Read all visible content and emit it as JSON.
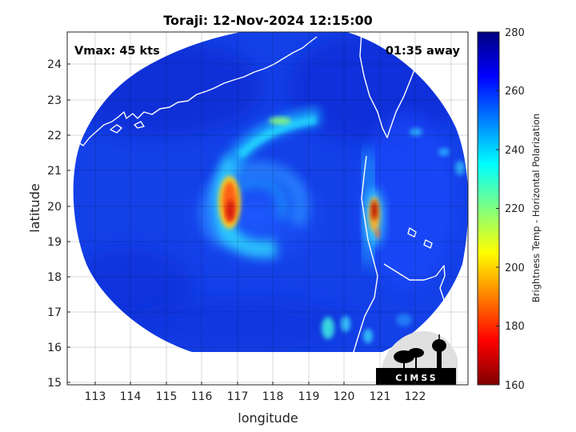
{
  "chart_data": {
    "type": "heatmap",
    "title": "Toraji: 12-Nov-2024 12:15:00",
    "xlabel": "longitude",
    "ylabel": "latitude",
    "xlim": [
      112.4,
      122.9
    ],
    "ylim": [
      14.9,
      24.9
    ],
    "x_ticks": [
      "113",
      "114",
      "115",
      "116",
      "117",
      "118",
      "119",
      "120",
      "121",
      "122"
    ],
    "y_ticks": [
      "15",
      "16",
      "17",
      "18",
      "19",
      "20",
      "21",
      "22",
      "23",
      "24"
    ],
    "grid": true,
    "colorbar": {
      "label": "Brightness Temp - Horizontal Polarization",
      "min": 160,
      "max": 280,
      "ticks": [
        "160",
        "180",
        "200",
        "220",
        "240",
        "260",
        "280"
      ],
      "colormap": "jet"
    },
    "annotations": {
      "vmax": "Vmax: 45 kts",
      "away": "01:35 away"
    },
    "storm_center": {
      "lon": 117.6,
      "lat": 19.7
    },
    "cold_features": [
      {
        "lon": 116.6,
        "lat": 19.9,
        "tb": 185
      },
      {
        "lon": 120.4,
        "lat": 19.8,
        "tb": 190
      },
      {
        "lon": 118.2,
        "lat": 22.4,
        "tb": 228
      }
    ],
    "logo": "CIMSS"
  }
}
